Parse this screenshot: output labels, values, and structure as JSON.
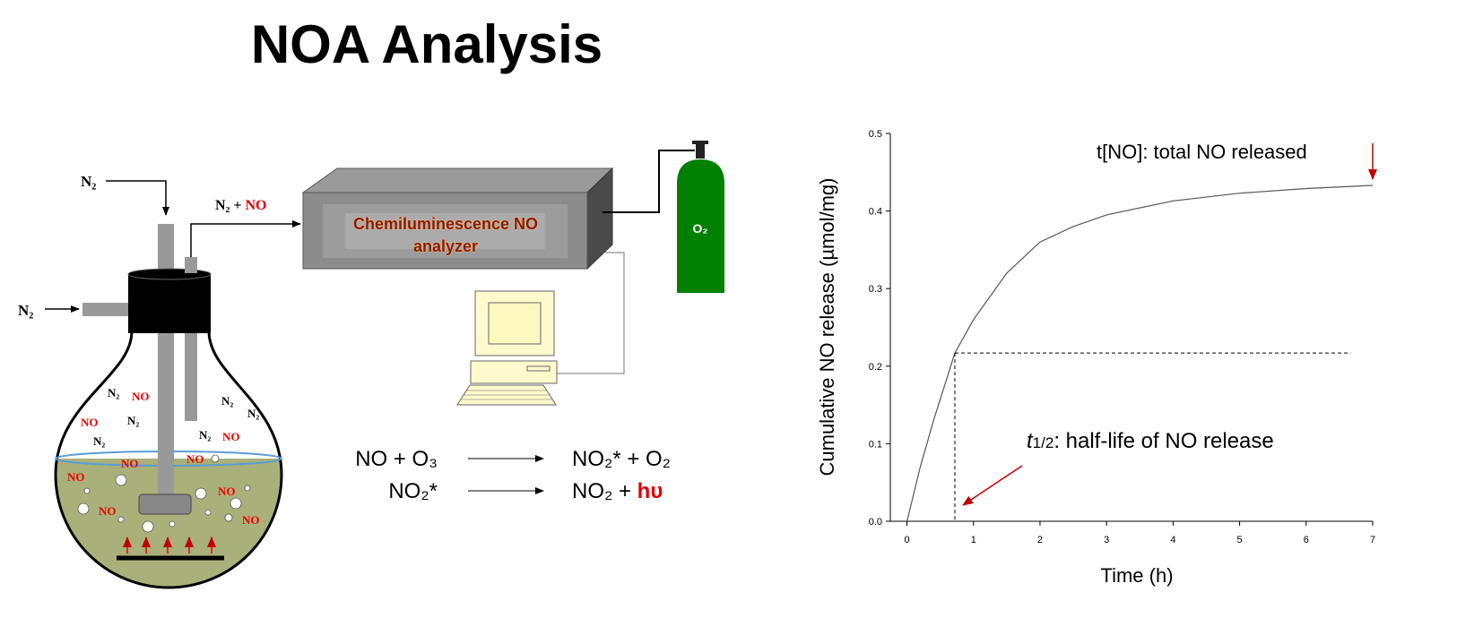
{
  "title": "NOA Analysis",
  "diagram": {
    "inlet_top": "N₂",
    "inlet_side": "N₂",
    "outlet_gas": "N₂ +",
    "outlet_no": "NO",
    "analyzer": [
      "Chemiluminescence NO",
      "analyzer"
    ],
    "cylinder": "O₂",
    "flask_labels": [
      "N₂",
      "NO",
      "N₂",
      "N₂",
      "NO",
      "N₂",
      "N₂",
      "NO",
      "N₂",
      "NO",
      "NO",
      "NO",
      "NO",
      "NO",
      "NO"
    ],
    "reactions": [
      {
        "left": "NO + O₃",
        "right": "NO₂* + O₂"
      },
      {
        "left": "NO₂*",
        "right": "NO₂ +",
        "highlight": "hυ"
      }
    ]
  },
  "chart_data": {
    "type": "line",
    "x_label": "Time (h)",
    "y_label": "Cumulative NO release (µmol/mg)",
    "x": [
      0,
      0.2,
      0.4,
      0.72,
      1,
      1.5,
      2,
      2.5,
      3,
      4,
      5,
      6,
      7
    ],
    "values": [
      0,
      0.07,
      0.13,
      0.217,
      0.26,
      0.32,
      0.36,
      0.38,
      0.395,
      0.413,
      0.423,
      0.429,
      0.433
    ],
    "color": "#555555",
    "xlim": [
      -0.25,
      7
    ],
    "ylim": [
      0,
      0.5
    ],
    "xticks": [
      0,
      1,
      2,
      3,
      4,
      5,
      6,
      7
    ],
    "yticks": [
      {
        "value": 0,
        "label": "0.0"
      },
      0.1,
      0.2,
      0.3,
      0.4,
      0.5
    ],
    "total_label": "t[NO]: total NO released",
    "half_life_label": {
      "t": "t",
      "sub": "1/2",
      "text": ": half-life of NO release"
    },
    "half_life": {
      "x": 0.72,
      "y": 0.217
    },
    "dash_end": 6.67
  }
}
